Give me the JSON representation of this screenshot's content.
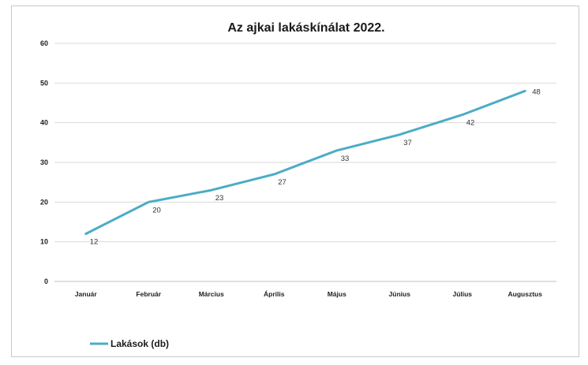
{
  "chart_data": {
    "type": "line",
    "title": "Az ajkai lakáskínálat 2022.",
    "categories": [
      "Január",
      "Február",
      "Március",
      "Április",
      "Május",
      "Június",
      "Július",
      "Augusztus"
    ],
    "series": [
      {
        "name": "Lakások (db)",
        "values": [
          12,
          20,
          23,
          27,
          33,
          37,
          42,
          48
        ],
        "color": "#4bacc6"
      }
    ],
    "ylim": [
      0,
      60
    ],
    "yticks": [
      0,
      10,
      20,
      30,
      40,
      50,
      60
    ],
    "grid": true,
    "legend_position": "bottom-left",
    "gridline_color": "#d9d9d9"
  }
}
